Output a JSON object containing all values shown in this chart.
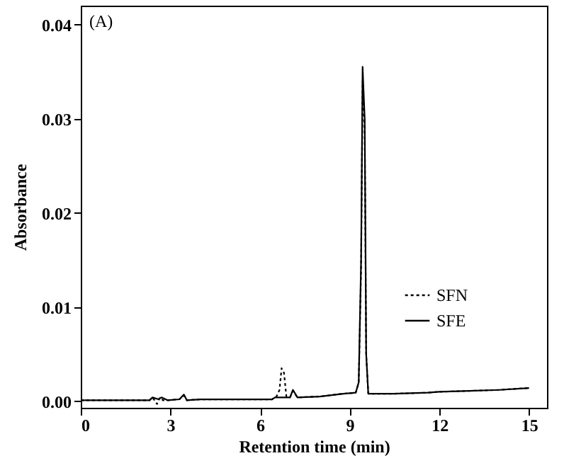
{
  "chart_data": {
    "type": "line",
    "xlabel": "Retention time (min)",
    "ylabel": "Absorbance",
    "annotations": [
      "(A)"
    ],
    "xlim": [
      0,
      15.6
    ],
    "xticks": [
      0,
      3,
      6,
      9,
      12,
      15
    ],
    "ylim": [
      -0.0007,
      0.042
    ],
    "yticks": [
      {
        "value": 0,
        "label": "0.00"
      },
      {
        "value": 0.01,
        "label": "0.01"
      },
      {
        "value": 0.02,
        "label": "0.02"
      },
      {
        "value": 0.03,
        "label": "0.03"
      },
      {
        "value": 0.04,
        "label": "0.04"
      }
    ],
    "legend": "bottom right",
    "grid": false,
    "series": [
      {
        "name": "SFN",
        "color": "#000000",
        "line_style": "dotted",
        "x": [
          0,
          2.3,
          2.4,
          2.55,
          2.65,
          2.75,
          2.9,
          3.3,
          3.45,
          3.55,
          4,
          6.4,
          6.55,
          6.65,
          6.72,
          6.8,
          6.88,
          7.0,
          7.1,
          7.25,
          8,
          8.8,
          9.2,
          9.3,
          9.38,
          9.43,
          9.5,
          9.55,
          9.62,
          10.5,
          11.6,
          12,
          13,
          14,
          15
        ],
        "values": [
          0.0001,
          0.0001,
          0.0004,
          -0.0003,
          0.0004,
          0.0001,
          0.0001,
          0.0002,
          0.0006,
          0.0001,
          0.0002,
          0.0002,
          0.0005,
          0.0012,
          0.0035,
          0.003,
          0.0005,
          0.0004,
          0.0011,
          0.0004,
          0.0005,
          0.0008,
          0.0009,
          0.002,
          0.014,
          0.034,
          0.029,
          0.005,
          0.0008,
          0.0008,
          0.0009,
          0.001,
          0.0011,
          0.0012,
          0.0014
        ]
      },
      {
        "name": "SFE",
        "color": "#000000",
        "line_style": "solid",
        "x": [
          0,
          2.3,
          2.4,
          2.6,
          2.7,
          2.9,
          3.3,
          3.45,
          3.55,
          4,
          6.4,
          6.5,
          7.0,
          7.1,
          7.25,
          8,
          8.8,
          9.2,
          9.3,
          9.38,
          9.43,
          9.5,
          9.55,
          9.62,
          10.5,
          11.6,
          12,
          13,
          14,
          15
        ],
        "values": [
          0.0001,
          0.0001,
          0.0004,
          0.0002,
          0.0004,
          0.0001,
          0.0002,
          0.0007,
          0.0001,
          0.0002,
          0.0002,
          0.0004,
          0.0004,
          0.0012,
          0.0004,
          0.0005,
          0.0008,
          0.0009,
          0.002,
          0.015,
          0.0355,
          0.03,
          0.005,
          0.0008,
          0.0008,
          0.0009,
          0.001,
          0.0011,
          0.0012,
          0.0014
        ]
      }
    ]
  }
}
